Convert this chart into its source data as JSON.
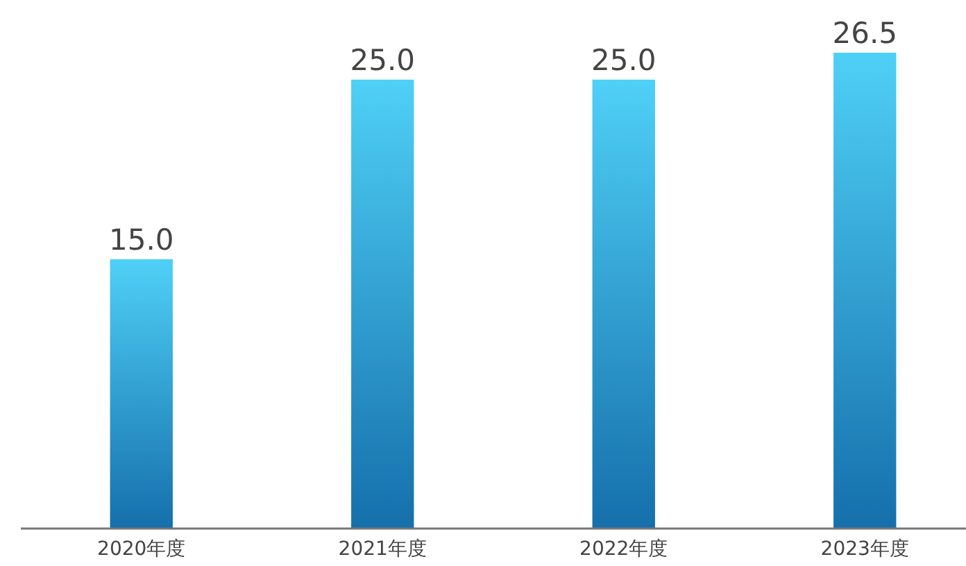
{
  "chart_data": {
    "type": "bar",
    "categories": [
      "2020年度",
      "2021年度",
      "2022年度",
      "2023年度"
    ],
    "values": [
      15.0,
      25.0,
      25.0,
      26.5
    ],
    "color": "#1a8ad4",
    "data_labels": true,
    "value_labels": [
      "15.0",
      "25.0",
      "25.0",
      "26.5"
    ]
  }
}
